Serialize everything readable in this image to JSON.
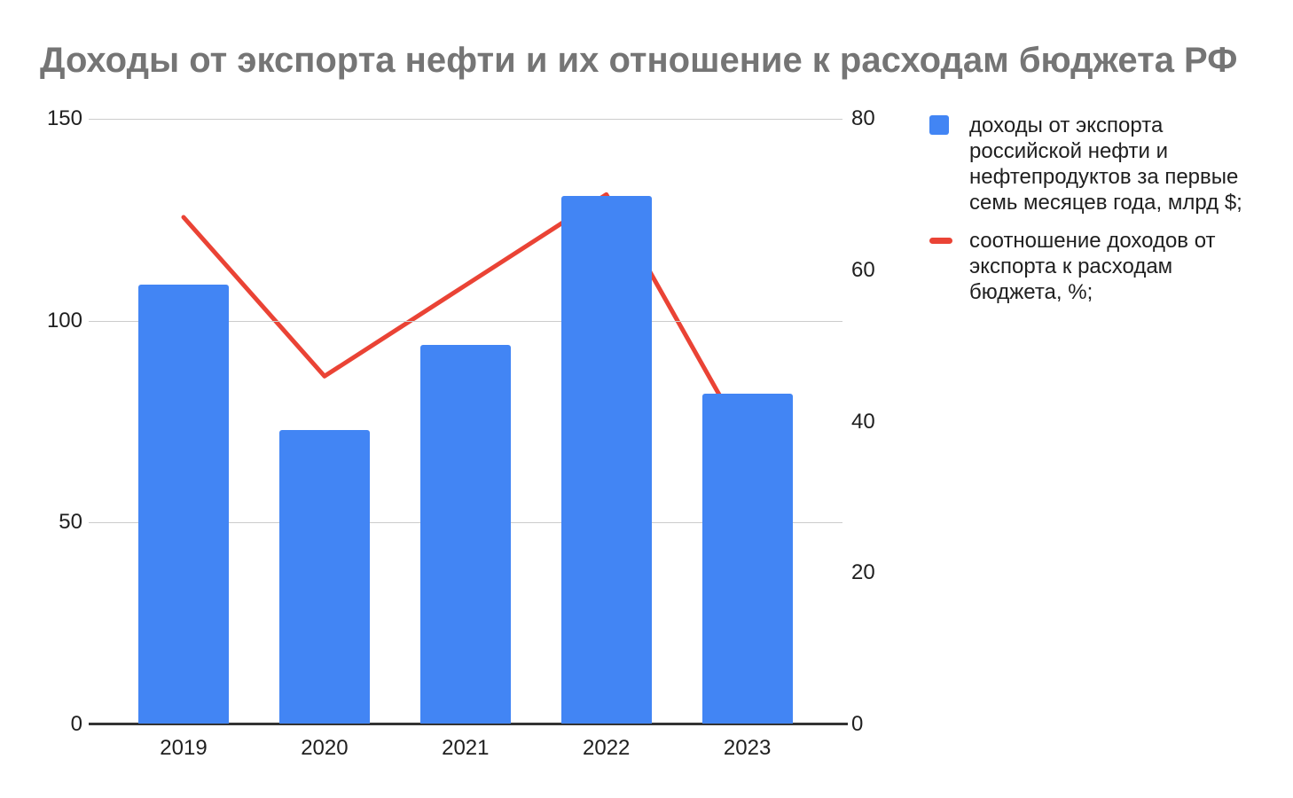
{
  "title": "Доходы от экспорта нефти и их отношение к расходам бюджета РФ",
  "chart_data": {
    "type": "combo-bar-line",
    "categories": [
      "2019",
      "2020",
      "2021",
      "2022",
      "2023"
    ],
    "series": [
      {
        "name": "доходы от экспорта российской нефти и нефтепродуктов за первые семь месяцев года, млрд $;",
        "label_lines": [
          "доходы от экспорта",
          "российской нефти и",
          "нефтепродуктов за первые",
          "семь месяцев года, млрд $;"
        ],
        "type": "bar",
        "axis": "left",
        "color": "#4285F4",
        "values": [
          109,
          73,
          94,
          131,
          82
        ]
      },
      {
        "name": "соотношение доходов от экспорта к расходам бюджета, %;",
        "label_lines": [
          "соотношение доходов от",
          "экспорта к расходам",
          "бюджета, %;"
        ],
        "type": "line",
        "axis": "right",
        "color": "#EA4335",
        "values": [
          67,
          46,
          58,
          70,
          37
        ]
      }
    ],
    "left_axis": {
      "ticks": [
        0,
        50,
        100,
        150
      ],
      "range": [
        0,
        150
      ]
    },
    "right_axis": {
      "ticks": [
        0,
        20,
        40,
        60,
        80
      ],
      "range": [
        0,
        80
      ]
    },
    "grid": true,
    "legend_position": "right",
    "colors": {
      "title": "#757575",
      "axis_text": "#1f1f1f",
      "gridline": "#cccccc",
      "baseline": "#333333"
    }
  }
}
